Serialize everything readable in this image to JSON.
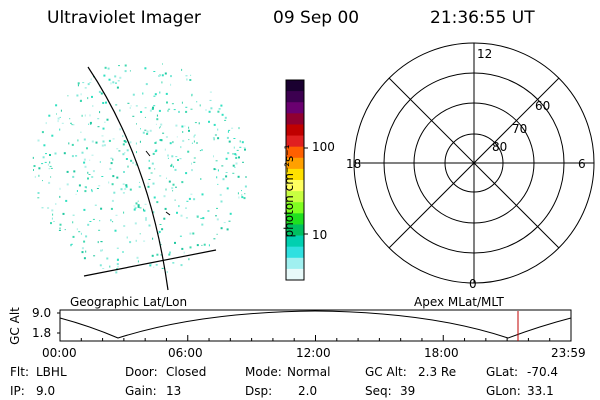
{
  "header": {
    "title": "Ultraviolet Imager",
    "date": "09 Sep 00",
    "time": "21:36:55 UT"
  },
  "left_panel": {
    "caption": "Geographic Lat/Lon"
  },
  "colorbar": {
    "label": "photon cm⁻²s⁻¹",
    "ticks": [
      "100",
      "10"
    ],
    "colors": [
      "#1a0030",
      "#3c0050",
      "#6a0070",
      "#900030",
      "#c00000",
      "#e02020",
      "#ff6000",
      "#ffa000",
      "#ffe000",
      "#ffff60",
      "#c8ff40",
      "#80ff20",
      "#20e020",
      "#00c060",
      "#00d0b0",
      "#30e0e0",
      "#a0f0f0",
      "#e8fafa"
    ]
  },
  "polar_panel": {
    "caption": "Apex MLat/MLT",
    "mlt_labels": {
      "top": "12",
      "left": "18",
      "right": "6",
      "bottom": "0"
    },
    "lat_labels": [
      "60",
      "70",
      "80"
    ]
  },
  "altitude_plot": {
    "ylabel": "GC Alt",
    "y_ticks": [
      "9.0",
      "1.8"
    ],
    "x_ticks": [
      "00:00",
      "06:00",
      "12:00",
      "18:00",
      "23:59"
    ],
    "marker_color": "#c00000"
  },
  "info": {
    "row1": [
      {
        "label": "Flt:",
        "value": "LBHL"
      },
      {
        "label": "Door:",
        "value": "Closed"
      },
      {
        "label": "Mode:",
        "value": "Normal"
      },
      {
        "label": "GC Alt:",
        "value": "2.3 Re"
      },
      {
        "label": "GLat:",
        "value": "-70.4"
      }
    ],
    "row2": [
      {
        "label": "IP:",
        "value": "9.0"
      },
      {
        "label": "Gain:",
        "value": "13"
      },
      {
        "label": "Dsp:",
        "value": "2.0"
      },
      {
        "label": "Seq:",
        "value": "39"
      },
      {
        "label": "GLon:",
        "value": "33.1"
      }
    ]
  }
}
